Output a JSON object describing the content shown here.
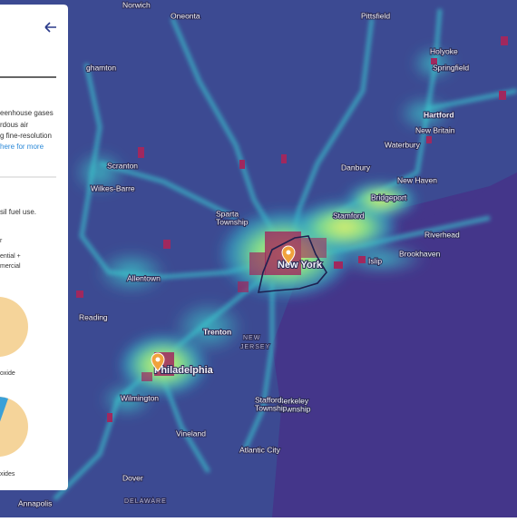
{
  "panel": {
    "text_lines": [
      "eenhouse gases",
      "rdous air",
      "g fine-resolution"
    ],
    "link": "here for more",
    "subtitle": "sil fuel use.",
    "legend_lines": [
      "r",
      "ential +",
      "mercial"
    ],
    "pie_labels": [
      "oxide",
      "xides"
    ]
  },
  "map_labels": [
    "Norwich",
    "Oneonta",
    "Pittsfield",
    "Holyoke",
    "Springfield",
    "Hartford",
    "New Britain",
    "Waterbury",
    "Danbury",
    "New Haven",
    "Bridgeport",
    "Stamford",
    "ghamton",
    "Scranton",
    "Wilkes-Barre",
    "Sparta",
    "Township",
    "Riverhead",
    "Brookhaven",
    "Islip",
    "New York",
    "Allentown",
    "Reading",
    "Trenton",
    "NEW",
    "JERSEY",
    "Philadelphia",
    "Wilmington",
    "Berkeley",
    "Township",
    "Stafford",
    "Township",
    "Vineland",
    "Atlantic City",
    "Dover",
    "DELAWARE",
    "Annapolis"
  ]
}
